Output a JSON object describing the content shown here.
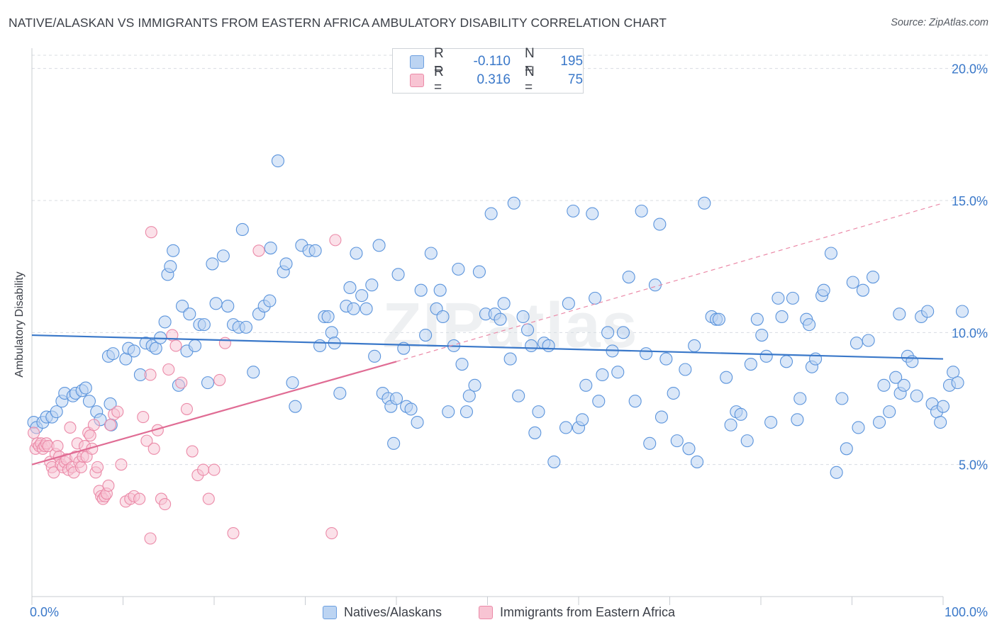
{
  "title": "NATIVE/ALASKAN VS IMMIGRANTS FROM EASTERN AFRICA AMBULATORY DISABILITY CORRELATION CHART",
  "source": "Source: ZipAtlas.com",
  "watermark": "ZIPatlas",
  "legend": {
    "series1": {
      "r_label": "R =",
      "r_value": "-0.110",
      "n_label": "N =",
      "n_value": "195"
    },
    "series2": {
      "r_label": "R =",
      "r_value": "0.316",
      "n_label": "N =",
      "n_value": "75"
    }
  },
  "bottom_legend": [
    "Natives/Alaskans",
    "Immigrants from Eastern Africa"
  ],
  "colors": {
    "blue": "#5b94dc",
    "blue_fill": "#bcd4f2",
    "blue_line": "#3a78c9",
    "pink": "#eb8aa8",
    "pink_fill": "#f8c4d3",
    "pink_line": "#e06c94",
    "tick_text": "#3a78c9"
  },
  "chart_data": {
    "type": "scatter",
    "title": "NATIVE/ALASKAN VS IMMIGRANTS FROM EASTERN AFRICA AMBULATORY DISABILITY CORRELATION CHART",
    "xlabel": "",
    "ylabel": "Ambulatory Disability",
    "xlim": [
      0,
      100
    ],
    "ylim": [
      0,
      20.5
    ],
    "x_tick_labels": [
      "0.0%",
      "100.0%"
    ],
    "y_ticks": [
      5,
      10,
      15,
      20
    ],
    "y_tick_labels": [
      "5.0%",
      "10.0%",
      "15.0%",
      "20.0%"
    ],
    "grid": "horizontal dashed",
    "legend_position": "top-center",
    "series": [
      {
        "name": "Natives/Alaskans",
        "color": "#5b94dc",
        "trend": {
          "x": [
            0,
            100
          ],
          "y": [
            9.9,
            9.0
          ],
          "style": "solid"
        },
        "points": [
          [
            0.2,
            6.6
          ],
          [
            0.5,
            6.4
          ],
          [
            1.2,
            6.6
          ],
          [
            1.6,
            6.8
          ],
          [
            2.2,
            6.8
          ],
          [
            2.7,
            7.0
          ],
          [
            3.3,
            7.4
          ],
          [
            3.6,
            7.7
          ],
          [
            4.5,
            7.6
          ],
          [
            4.8,
            7.7
          ],
          [
            5.5,
            7.8
          ],
          [
            5.9,
            7.9
          ],
          [
            6.3,
            7.4
          ],
          [
            7.1,
            7.0
          ],
          [
            7.5,
            6.7
          ],
          [
            8.4,
            9.1
          ],
          [
            8.9,
            9.2
          ],
          [
            8.6,
            7.3
          ],
          [
            8.7,
            6.5
          ],
          [
            10.3,
            9.0
          ],
          [
            10.6,
            9.4
          ],
          [
            11.2,
            9.3
          ],
          [
            11.9,
            8.4
          ],
          [
            12.5,
            9.6
          ],
          [
            13.2,
            9.5
          ],
          [
            13.6,
            9.4
          ],
          [
            14.1,
            9.8
          ],
          [
            14.6,
            10.4
          ],
          [
            14.9,
            12.2
          ],
          [
            15.2,
            12.5
          ],
          [
            15.5,
            13.1
          ],
          [
            16.1,
            8.0
          ],
          [
            16.5,
            11.0
          ],
          [
            17.0,
            9.3
          ],
          [
            17.3,
            10.7
          ],
          [
            17.9,
            9.5
          ],
          [
            18.4,
            10.3
          ],
          [
            18.9,
            10.3
          ],
          [
            19.3,
            8.1
          ],
          [
            19.8,
            12.6
          ],
          [
            20.2,
            11.1
          ],
          [
            21.0,
            12.9
          ],
          [
            21.5,
            11.0
          ],
          [
            22.1,
            10.3
          ],
          [
            22.7,
            10.2
          ],
          [
            23.1,
            13.9
          ],
          [
            23.5,
            10.2
          ],
          [
            24.3,
            8.5
          ],
          [
            24.9,
            10.7
          ],
          [
            25.5,
            11.0
          ],
          [
            26.1,
            11.2
          ],
          [
            26.2,
            13.2
          ],
          [
            27.0,
            16.5
          ],
          [
            27.6,
            12.3
          ],
          [
            27.9,
            12.6
          ],
          [
            28.6,
            8.1
          ],
          [
            28.9,
            7.2
          ],
          [
            29.6,
            13.3
          ],
          [
            30.4,
            13.1
          ],
          [
            31.1,
            13.1
          ],
          [
            31.6,
            9.5
          ],
          [
            32.1,
            10.6
          ],
          [
            32.5,
            10.6
          ],
          [
            32.9,
            10.0
          ],
          [
            33.2,
            9.6
          ],
          [
            33.8,
            7.7
          ],
          [
            34.5,
            11.0
          ],
          [
            34.9,
            11.7
          ],
          [
            35.3,
            10.9
          ],
          [
            35.6,
            13.0
          ],
          [
            36.2,
            11.4
          ],
          [
            36.7,
            10.9
          ],
          [
            37.3,
            11.8
          ],
          [
            37.6,
            9.1
          ],
          [
            38.1,
            13.3
          ],
          [
            38.5,
            7.7
          ],
          [
            39.1,
            7.5
          ],
          [
            39.4,
            7.2
          ],
          [
            39.7,
            5.8
          ],
          [
            40.2,
            12.2
          ],
          [
            40.8,
            9.4
          ],
          [
            41.1,
            7.2
          ],
          [
            41.6,
            7.1
          ],
          [
            42.3,
            6.6
          ],
          [
            42.7,
            11.6
          ],
          [
            43.2,
            9.9
          ],
          [
            43.8,
            13.0
          ],
          [
            44.4,
            10.9
          ],
          [
            44.8,
            11.6
          ],
          [
            45.1,
            10.6
          ],
          [
            45.7,
            7.0
          ],
          [
            46.3,
            9.5
          ],
          [
            46.8,
            12.4
          ],
          [
            47.2,
            8.8
          ],
          [
            47.7,
            7.0
          ],
          [
            48.0,
            7.6
          ],
          [
            48.6,
            8.0
          ],
          [
            49.1,
            12.3
          ],
          [
            49.8,
            10.7
          ],
          [
            50.4,
            14.5
          ],
          [
            50.8,
            10.7
          ],
          [
            51.4,
            10.5
          ],
          [
            51.8,
            11.1
          ],
          [
            52.5,
            9.0
          ],
          [
            52.9,
            14.9
          ],
          [
            53.4,
            7.6
          ],
          [
            53.9,
            10.6
          ],
          [
            54.4,
            10.1
          ],
          [
            54.8,
            9.5
          ],
          [
            55.2,
            6.2
          ],
          [
            55.6,
            7.0
          ],
          [
            56.2,
            9.6
          ],
          [
            56.7,
            9.5
          ],
          [
            57.3,
            5.1
          ],
          [
            58.6,
            6.4
          ],
          [
            58.9,
            11.1
          ],
          [
            59.4,
            14.6
          ],
          [
            60.0,
            6.4
          ],
          [
            60.4,
            6.7
          ],
          [
            60.8,
            8.0
          ],
          [
            61.5,
            14.5
          ],
          [
            61.8,
            11.3
          ],
          [
            62.2,
            7.4
          ],
          [
            62.6,
            8.4
          ],
          [
            63.2,
            10.0
          ],
          [
            63.7,
            9.3
          ],
          [
            64.3,
            8.5
          ],
          [
            64.9,
            10.0
          ],
          [
            65.5,
            12.1
          ],
          [
            66.2,
            7.4
          ],
          [
            66.9,
            14.6
          ],
          [
            67.4,
            9.2
          ],
          [
            67.8,
            5.8
          ],
          [
            68.4,
            11.8
          ],
          [
            68.9,
            14.1
          ],
          [
            69.1,
            6.8
          ],
          [
            69.6,
            9.0
          ],
          [
            70.4,
            7.7
          ],
          [
            70.8,
            5.9
          ],
          [
            71.7,
            8.6
          ],
          [
            72.1,
            5.6
          ],
          [
            72.7,
            9.5
          ],
          [
            73.0,
            5.1
          ],
          [
            73.8,
            14.9
          ],
          [
            74.6,
            10.6
          ],
          [
            75.1,
            10.5
          ],
          [
            75.4,
            10.5
          ],
          [
            76.2,
            8.3
          ],
          [
            76.7,
            6.5
          ],
          [
            77.3,
            7.0
          ],
          [
            77.8,
            6.9
          ],
          [
            78.5,
            5.9
          ],
          [
            78.9,
            8.8
          ],
          [
            79.6,
            10.5
          ],
          [
            80.1,
            9.9
          ],
          [
            80.6,
            9.1
          ],
          [
            81.1,
            6.6
          ],
          [
            81.9,
            11.3
          ],
          [
            82.3,
            10.6
          ],
          [
            82.8,
            8.9
          ],
          [
            83.5,
            11.3
          ],
          [
            84.0,
            6.7
          ],
          [
            84.3,
            7.5
          ],
          [
            85.0,
            10.5
          ],
          [
            85.6,
            8.7
          ],
          [
            86.0,
            9.0
          ],
          [
            86.7,
            11.4
          ],
          [
            86.9,
            11.6
          ],
          [
            87.7,
            13.0
          ],
          [
            88.3,
            4.7
          ],
          [
            88.9,
            7.5
          ],
          [
            89.4,
            5.6
          ],
          [
            90.1,
            11.9
          ],
          [
            90.5,
            9.6
          ],
          [
            91.2,
            11.6
          ],
          [
            91.8,
            9.7
          ],
          [
            92.3,
            12.1
          ],
          [
            93.0,
            6.6
          ],
          [
            93.5,
            8.0
          ],
          [
            94.1,
            7.0
          ],
          [
            94.8,
            8.3
          ],
          [
            95.3,
            7.7
          ],
          [
            95.7,
            8.0
          ],
          [
            96.1,
            9.1
          ],
          [
            96.6,
            8.9
          ],
          [
            97.1,
            7.6
          ],
          [
            97.6,
            10.6
          ],
          [
            98.3,
            10.8
          ],
          [
            98.8,
            7.3
          ],
          [
            99.3,
            7.0
          ],
          [
            99.7,
            6.6
          ],
          [
            100.0,
            7.2
          ],
          [
            100.7,
            8.0
          ],
          [
            101.1,
            8.5
          ],
          [
            101.6,
            8.1
          ],
          [
            102.1,
            10.8
          ],
          [
            95.2,
            10.7
          ],
          [
            90.7,
            6.4
          ],
          [
            85.3,
            10.3
          ],
          [
            40.0,
            7.5
          ]
        ]
      },
      {
        "name": "Immigrants from Eastern Africa",
        "color": "#eb8aa8",
        "trend": {
          "x": [
            0,
            40
          ],
          "y": [
            5.0,
            8.9
          ],
          "style": "solid",
          "extended_to": [
            100,
            14.9
          ],
          "extended_style": "dashed"
        },
        "points": [
          [
            0.2,
            6.2
          ],
          [
            0.4,
            5.6
          ],
          [
            0.6,
            5.8
          ],
          [
            0.8,
            5.7
          ],
          [
            1.0,
            5.8
          ],
          [
            1.2,
            5.6
          ],
          [
            1.4,
            5.7
          ],
          [
            1.6,
            5.8
          ],
          [
            1.8,
            5.7
          ],
          [
            2.0,
            5.1
          ],
          [
            2.2,
            4.9
          ],
          [
            2.4,
            4.7
          ],
          [
            2.6,
            5.4
          ],
          [
            2.8,
            5.7
          ],
          [
            3.0,
            5.3
          ],
          [
            3.2,
            5.0
          ],
          [
            3.4,
            4.9
          ],
          [
            3.6,
            5.1
          ],
          [
            3.8,
            5.2
          ],
          [
            4.0,
            4.8
          ],
          [
            4.2,
            6.4
          ],
          [
            4.4,
            4.9
          ],
          [
            4.6,
            4.7
          ],
          [
            4.8,
            5.3
          ],
          [
            5.0,
            5.8
          ],
          [
            5.2,
            5.1
          ],
          [
            5.4,
            4.9
          ],
          [
            5.6,
            5.3
          ],
          [
            5.8,
            5.7
          ],
          [
            6.0,
            5.3
          ],
          [
            6.2,
            6.2
          ],
          [
            6.4,
            6.1
          ],
          [
            6.6,
            5.6
          ],
          [
            6.8,
            6.5
          ],
          [
            7.0,
            4.7
          ],
          [
            7.2,
            4.9
          ],
          [
            7.4,
            4.0
          ],
          [
            7.6,
            3.8
          ],
          [
            7.8,
            3.7
          ],
          [
            8.0,
            3.8
          ],
          [
            8.2,
            3.9
          ],
          [
            8.4,
            4.2
          ],
          [
            8.6,
            6.5
          ],
          [
            9.0,
            6.9
          ],
          [
            9.4,
            7.0
          ],
          [
            9.8,
            5.0
          ],
          [
            10.3,
            3.6
          ],
          [
            10.8,
            3.7
          ],
          [
            11.2,
            3.8
          ],
          [
            11.8,
            3.7
          ],
          [
            12.2,
            6.8
          ],
          [
            12.6,
            5.9
          ],
          [
            13.0,
            8.4
          ],
          [
            13.4,
            5.6
          ],
          [
            13.8,
            6.3
          ],
          [
            14.2,
            3.7
          ],
          [
            14.6,
            3.5
          ],
          [
            15.0,
            8.6
          ],
          [
            15.4,
            9.9
          ],
          [
            15.8,
            9.5
          ],
          [
            16.4,
            8.1
          ],
          [
            17.0,
            7.1
          ],
          [
            17.6,
            5.5
          ],
          [
            18.2,
            4.6
          ],
          [
            18.8,
            4.8
          ],
          [
            19.4,
            3.7
          ],
          [
            20.0,
            4.8
          ],
          [
            20.6,
            8.2
          ],
          [
            21.2,
            9.6
          ],
          [
            13.1,
            13.8
          ],
          [
            24.9,
            13.1
          ],
          [
            33.3,
            13.5
          ],
          [
            22.1,
            2.4
          ],
          [
            32.9,
            2.4
          ],
          [
            13.0,
            2.2
          ]
        ]
      }
    ]
  }
}
